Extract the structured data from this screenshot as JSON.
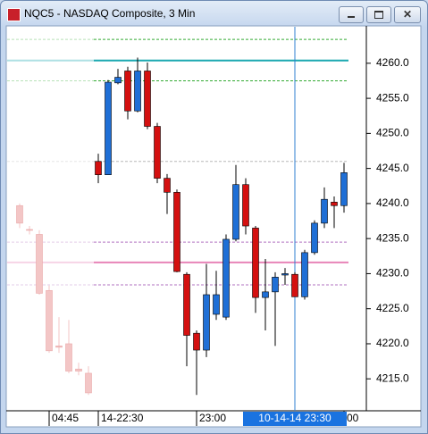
{
  "window": {
    "title": "NQC5 - NASDAQ Composite, 3 Min"
  },
  "chart_data": {
    "type": "candlestick",
    "ylim": [
      4210.7,
      4265.2
    ],
    "yticks": [
      {
        "value": 4215,
        "label": "4215.0"
      },
      {
        "value": 4220,
        "label": "4220.0"
      },
      {
        "value": 4225,
        "label": "4225.0"
      },
      {
        "value": 4230,
        "label": "4230.0"
      },
      {
        "value": 4235,
        "label": "4235.0"
      },
      {
        "value": 4240,
        "label": "4240.0"
      },
      {
        "value": 4245,
        "label": "4245.0"
      },
      {
        "value": 4250,
        "label": "4250.0"
      },
      {
        "value": 4255,
        "label": "4255.0"
      },
      {
        "value": 4260,
        "label": "4260.0"
      }
    ],
    "categories": [
      null,
      null,
      null,
      "04:45",
      null,
      null,
      null,
      null,
      "14-22:30",
      null,
      null,
      null,
      null,
      null,
      null,
      null,
      null,
      null,
      "23:00",
      null,
      null,
      null,
      null,
      null,
      null,
      null,
      null,
      null,
      "10-14-14 23:30",
      null,
      null,
      null,
      null,
      "00"
    ],
    "crosshair_x": 28,
    "up_color": "#1f6fd6",
    "down_color": "#d41010",
    "faded_color": "#f3c6c6",
    "faded": [
      {
        "open": 4239.7,
        "high": 4240.0,
        "low": 4236.5,
        "close": 4237.2
      },
      {
        "open": 4236.3,
        "high": 4236.8,
        "low": 4235.6,
        "close": 4236.2
      },
      {
        "open": 4235.6,
        "high": 4236.2,
        "low": 4227.0,
        "close": 4227.2
      },
      {
        "open": 4227.6,
        "high": 4228.3,
        "low": 4218.7,
        "close": 4219.0
      },
      {
        "open": 4219.7,
        "high": 4223.8,
        "low": 4218.7,
        "close": 4219.5
      },
      {
        "open": 4220.0,
        "high": 4223.4,
        "low": 4215.8,
        "close": 4216.1
      },
      {
        "open": 4216.4,
        "high": 4217.3,
        "low": 4215.5,
        "close": 4216.1
      },
      {
        "open": 4215.8,
        "high": 4216.8,
        "low": 4212.7,
        "close": 4213.0
      }
    ],
    "candles": [
      {
        "open": 4246.0,
        "high": 4247.1,
        "low": 4242.9,
        "close": 4244.1
      },
      {
        "open": 4244.1,
        "high": 4257.6,
        "low": 4244.1,
        "close": 4257.3
      },
      {
        "open": 4257.2,
        "high": 4259.2,
        "low": 4257.0,
        "close": 4258.0
      },
      {
        "open": 4258.9,
        "high": 4259.5,
        "low": 4252.0,
        "close": 4253.2
      },
      {
        "open": 4253.2,
        "high": 4260.8,
        "low": 4253.0,
        "close": 4258.9
      },
      {
        "open": 4258.9,
        "high": 4260.1,
        "low": 4250.6,
        "close": 4251.0
      },
      {
        "open": 4251.0,
        "high": 4251.5,
        "low": 4242.9,
        "close": 4243.6
      },
      {
        "open": 4243.6,
        "high": 4244.2,
        "low": 4238.5,
        "close": 4241.6
      },
      {
        "open": 4241.6,
        "high": 4242.0,
        "low": 4230.2,
        "close": 4230.3
      },
      {
        "open": 4229.9,
        "high": 4230.2,
        "low": 4216.8,
        "close": 4221.2
      },
      {
        "open": 4221.5,
        "high": 4221.9,
        "low": 4212.7,
        "close": 4219.1
      },
      {
        "open": 4219.1,
        "high": 4231.4,
        "low": 4218.1,
        "close": 4227.0
      },
      {
        "open": 4224.2,
        "high": 4230.4,
        "low": 4223.4,
        "close": 4227.0
      },
      {
        "open": 4223.8,
        "high": 4235.6,
        "low": 4223.4,
        "close": 4234.9
      },
      {
        "open": 4234.9,
        "high": 4245.5,
        "low": 4234.6,
        "close": 4242.7
      },
      {
        "open": 4242.7,
        "high": 4243.6,
        "low": 4235.6,
        "close": 4236.8
      },
      {
        "open": 4236.5,
        "high": 4236.8,
        "low": 4224.4,
        "close": 4226.6
      },
      {
        "open": 4226.6,
        "high": 4232.1,
        "low": 4221.9,
        "close": 4227.4
      },
      {
        "open": 4227.4,
        "high": 4230.2,
        "low": 4219.7,
        "close": 4229.5
      },
      {
        "open": 4229.8,
        "high": 4230.8,
        "low": 4228.4,
        "close": 4230.0
      },
      {
        "open": 4229.9,
        "high": 4230.2,
        "low": 4226.7,
        "close": 4226.7
      },
      {
        "open": 4226.7,
        "high": 4233.4,
        "low": 4226.3,
        "close": 4233.0
      },
      {
        "open": 4233.0,
        "high": 4237.6,
        "low": 4232.7,
        "close": 4237.2
      },
      {
        "open": 4237.2,
        "high": 4242.3,
        "low": 4236.5,
        "close": 4240.6
      },
      {
        "open": 4240.2,
        "high": 4241.0,
        "low": 4236.5,
        "close": 4239.7
      },
      {
        "open": 4239.7,
        "high": 4245.8,
        "low": 4238.7,
        "close": 4244.4
      }
    ],
    "levels": [
      {
        "value": 4263.4,
        "color": "#33aa33",
        "dashed": true
      },
      {
        "value": 4260.4,
        "color": "#1aa8b0",
        "dashed": false
      },
      {
        "value": 4257.5,
        "color": "#33aa33",
        "dashed": true
      },
      {
        "value": 4246.0,
        "color": "#b8b8b8",
        "dashed": true
      },
      {
        "value": 4234.5,
        "color": "#b070c0",
        "dashed": true
      },
      {
        "value": 4231.6,
        "color": "#e884b8",
        "dashed": false
      },
      {
        "value": 4228.4,
        "color": "#b070c0",
        "dashed": true
      }
    ]
  }
}
